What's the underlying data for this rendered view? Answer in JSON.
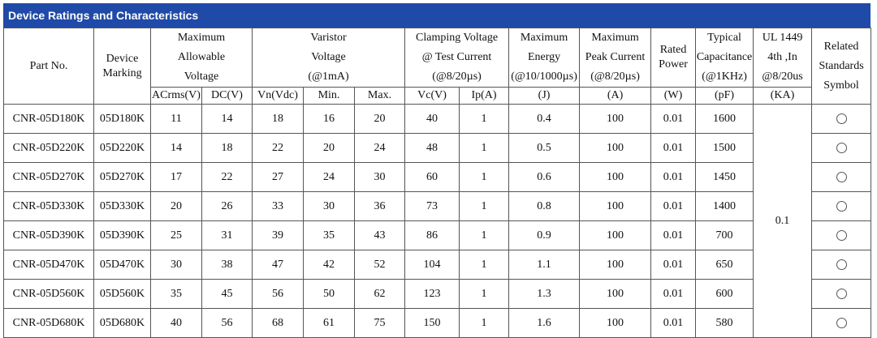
{
  "title": "Device Ratings and Characteristics",
  "headers": {
    "part_no": "Part No.",
    "device_marking": [
      "Device",
      "Marking"
    ],
    "max_allowable_voltage": [
      "Maximum",
      "Allowable",
      "Voltage"
    ],
    "varistor_voltage": [
      "Varistor",
      "Voltage",
      "(@1mA)"
    ],
    "clamping_voltage": [
      "Clamping Voltage",
      "@ Test Current",
      "(@8/20µs)"
    ],
    "max_energy": [
      "Maximum",
      "Energy",
      "(@10/1000µs)"
    ],
    "max_peak_current": [
      "Maximum",
      "Peak Current",
      "(@8/20µs)"
    ],
    "rated_power": [
      "Rated",
      "Power"
    ],
    "typical_capacitance": [
      "Typical",
      "Capacitance",
      "(@1KHz)"
    ],
    "ul1449": [
      "UL 1449",
      "4th ,In",
      "@8/20us"
    ],
    "related_standards": [
      "Related",
      "Standards",
      "Symbol"
    ]
  },
  "units": [
    "ACrms(V)",
    "DC(V)",
    "Vn(Vdc)",
    "Min.",
    "Max.",
    "Vc(V)",
    "Ip(A)",
    "(J)",
    "(A)",
    "(W)",
    "(pF)",
    "(KA)"
  ],
  "ul_in_value": "0.1",
  "rows": [
    {
      "part": "CNR-05D180K",
      "marking": "05D180K",
      "acrms": "11",
      "dc": "14",
      "vn": "18",
      "min": "16",
      "max": "20",
      "vc": "40",
      "ip": "1",
      "energy": "0.4",
      "peak": "100",
      "power": "0.01",
      "cap": "1600"
    },
    {
      "part": "CNR-05D220K",
      "marking": "05D220K",
      "acrms": "14",
      "dc": "18",
      "vn": "22",
      "min": "20",
      "max": "24",
      "vc": "48",
      "ip": "1",
      "energy": "0.5",
      "peak": "100",
      "power": "0.01",
      "cap": "1500"
    },
    {
      "part": "CNR-05D270K",
      "marking": "05D270K",
      "acrms": "17",
      "dc": "22",
      "vn": "27",
      "min": "24",
      "max": "30",
      "vc": "60",
      "ip": "1",
      "energy": "0.6",
      "peak": "100",
      "power": "0.01",
      "cap": "1450"
    },
    {
      "part": "CNR-05D330K",
      "marking": "05D330K",
      "acrms": "20",
      "dc": "26",
      "vn": "33",
      "min": "30",
      "max": "36",
      "vc": "73",
      "ip": "1",
      "energy": "0.8",
      "peak": "100",
      "power": "0.01",
      "cap": "1400"
    },
    {
      "part": "CNR-05D390K",
      "marking": "05D390K",
      "acrms": "25",
      "dc": "31",
      "vn": "39",
      "min": "35",
      "max": "43",
      "vc": "86",
      "ip": "1",
      "energy": "0.9",
      "peak": "100",
      "power": "0.01",
      "cap": "700"
    },
    {
      "part": "CNR-05D470K",
      "marking": "05D470K",
      "acrms": "30",
      "dc": "38",
      "vn": "47",
      "min": "42",
      "max": "52",
      "vc": "104",
      "ip": "1",
      "energy": "1.1",
      "peak": "100",
      "power": "0.01",
      "cap": "650"
    },
    {
      "part": "CNR-05D560K",
      "marking": "05D560K",
      "acrms": "35",
      "dc": "45",
      "vn": "56",
      "min": "50",
      "max": "62",
      "vc": "123",
      "ip": "1",
      "energy": "1.3",
      "peak": "100",
      "power": "0.01",
      "cap": "600"
    },
    {
      "part": "CNR-05D680K",
      "marking": "05D680K",
      "acrms": "40",
      "dc": "56",
      "vn": "68",
      "min": "61",
      "max": "75",
      "vc": "150",
      "ip": "1",
      "energy": "1.6",
      "peak": "100",
      "power": "0.01",
      "cap": "580"
    }
  ],
  "symbol_icon": "circle-icon"
}
